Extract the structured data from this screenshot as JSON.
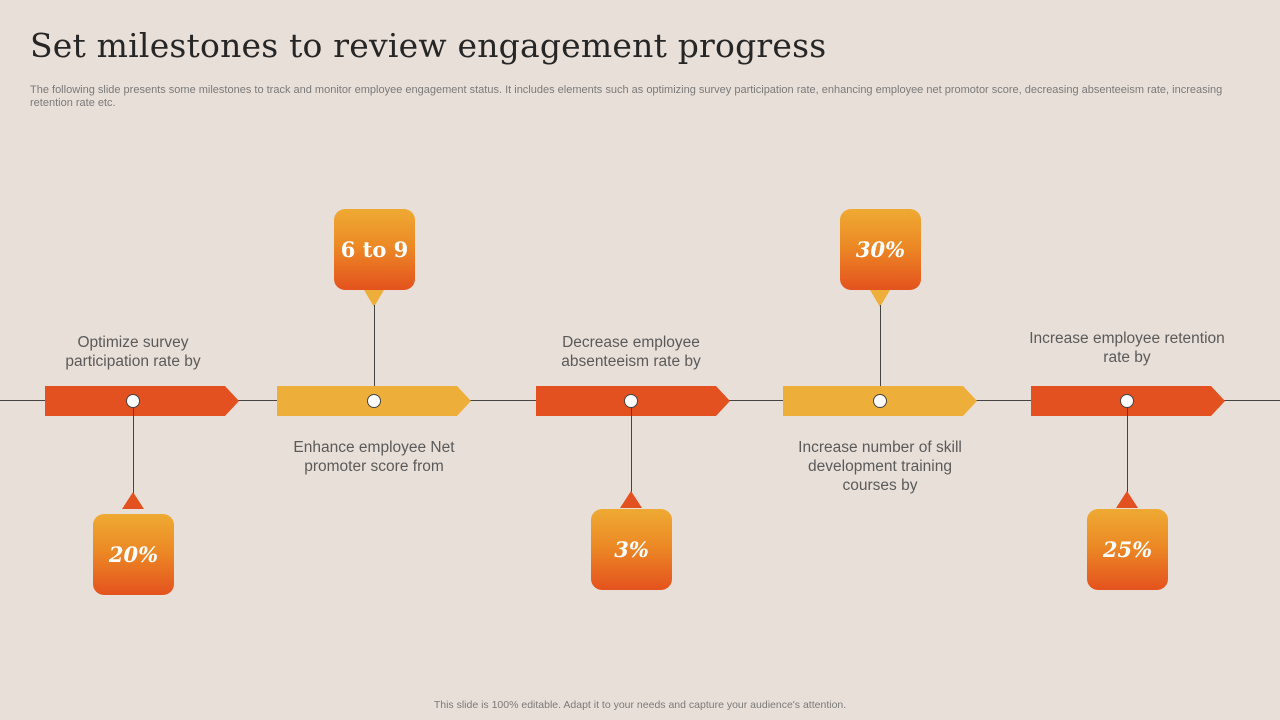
{
  "title": "Set milestones to review engagement progress",
  "subtitle": "The following slide presents some milestones to track and monitor employee engagement status. It includes elements such as optimizing survey participation rate, enhancing employee net promotor score, decreasing absenteeism rate, increasing retention rate etc.",
  "colors": {
    "background": "#E8DFD8",
    "red": "#E2511F",
    "yellow": "#EEAE3A"
  },
  "milestones": [
    {
      "label": "Optimize survey participation rate by",
      "value": "20%"
    },
    {
      "label": "Enhance employee Net promoter score from",
      "value": "6 to 9"
    },
    {
      "label": "Decrease employee absenteeism rate by",
      "value": "3%"
    },
    {
      "label": "Increase number of skill development training courses by",
      "value": "30%"
    },
    {
      "label": "Increase employee retention rate by",
      "value": "25%"
    }
  ],
  "footer": "This slide is 100% editable. Adapt it to your needs and capture your audience's attention."
}
